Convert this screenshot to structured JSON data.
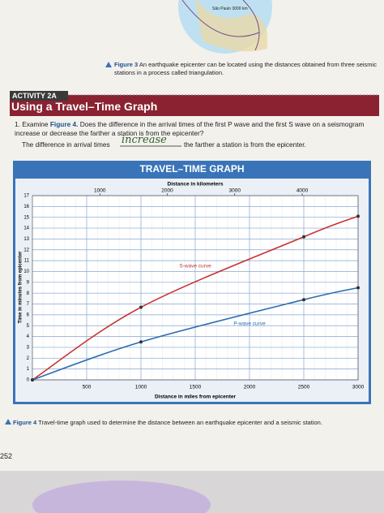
{
  "map_label": "São Paulo 3000 km",
  "figure3_caption": {
    "label": "Figure 3",
    "text": "An earthquake epicenter can be located using the distances obtained from three seismic stations in a process called triangulation."
  },
  "activity": {
    "tag": "ACTIVITY 2A",
    "title": "Using a Travel–Time Graph"
  },
  "question": {
    "number": "1.",
    "lead": "Examine",
    "figure_ref": "Figure 4.",
    "text": "Does the difference in the arrival times of the first P wave and the first S wave on a seismogram increase or decrease the farther a station is from the epicenter?",
    "answer_prefix": "The difference in arrival times",
    "answer": "increase",
    "answer_suffix": "the farther a station is from the epicenter."
  },
  "chart_data": {
    "type": "line",
    "title": "TRAVEL–TIME GRAPH",
    "x_label": "Distance in miles from epicenter",
    "x2_label": "Distance in kilometers",
    "y_label": "Time in minutes from epicenter",
    "x": [
      0,
      1000,
      2500,
      3000
    ],
    "series": [
      {
        "name": "S-wave curve",
        "color": "#c8322e",
        "values": [
          0,
          6.7,
          13.2,
          15.1
        ]
      },
      {
        "name": "P-wave curve",
        "color": "#2b6cb0",
        "values": [
          0,
          3.5,
          7.4,
          8.5
        ]
      }
    ],
    "xlim": [
      0,
      3000
    ],
    "xticks": [
      500,
      1000,
      1500,
      2000,
      2500,
      3000
    ],
    "x2lim": [
      0,
      4828
    ],
    "x2ticks": [
      1000,
      2000,
      3000,
      4000
    ],
    "ylim": [
      0,
      17
    ],
    "yticks": [
      0,
      1,
      2,
      3,
      4,
      5,
      6,
      7,
      8,
      9,
      10,
      11,
      12,
      13,
      14,
      15,
      16,
      17
    ],
    "annotation_x": [
      1500,
      2000
    ],
    "annotation_y": [
      10.5,
      5.2
    ],
    "grid": true
  },
  "figure4_caption": {
    "label": "Figure 4",
    "text": "Travel-time graph used to determine the distance between an earthquake epicenter and a seismic station."
  },
  "page_number": "252"
}
